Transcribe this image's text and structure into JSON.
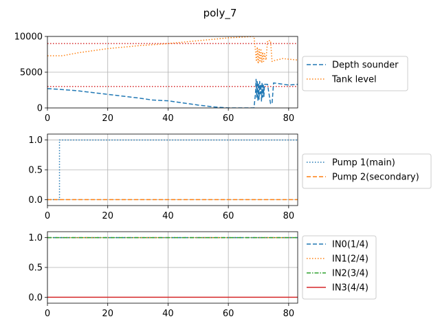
{
  "figure": {
    "title": "poly_7"
  },
  "chart_data": [
    {
      "type": "line",
      "xlim": [
        0,
        83
      ],
      "ylim": [
        0,
        10000
      ],
      "xticks": [
        0,
        20,
        40,
        60,
        80
      ],
      "yticks": [
        0,
        5000,
        10000
      ],
      "grid": true,
      "legend": "right",
      "series": [
        {
          "name": "Depth sounder",
          "color": "#1f77b4",
          "style": "dashed",
          "x": [
            0,
            4,
            10,
            20,
            30,
            35,
            40,
            45,
            50,
            55,
            60,
            62,
            68.5,
            69,
            69.2,
            69.4,
            69.6,
            69.8,
            70,
            70.2,
            70.4,
            70.6,
            70.8,
            71,
            71.2,
            71.4,
            71.6,
            71.8,
            72,
            73,
            74,
            74.5,
            75,
            80,
            83
          ],
          "y": [
            2700,
            2600,
            2400,
            1900,
            1400,
            1100,
            1000,
            700,
            400,
            150,
            0,
            0,
            0,
            2000,
            4000,
            1500,
            3800,
            1000,
            3500,
            1200,
            3700,
            2000,
            3300,
            900,
            3600,
            1500,
            3200,
            1600,
            3300,
            3300,
            600,
            600,
            3500,
            3200,
            3300
          ]
        },
        {
          "name": "Tank level",
          "color": "#ff7f0e",
          "style": "dotted",
          "x": [
            0,
            5,
            10,
            20,
            30,
            40,
            50,
            60,
            68.5,
            69,
            69.3,
            69.6,
            69.9,
            70.2,
            70.5,
            70.8,
            71.1,
            71.4,
            71.7,
            72,
            72.5,
            73,
            74,
            74.5,
            75,
            78,
            83
          ],
          "y": [
            7300,
            7300,
            7700,
            8300,
            8700,
            9000,
            9400,
            9800,
            10000,
            8000,
            6500,
            8500,
            6200,
            8200,
            6400,
            8300,
            6300,
            7800,
            6500,
            7600,
            6700,
            9400,
            9400,
            6500,
            6600,
            6900,
            6700
          ]
        }
      ],
      "hlines": [
        {
          "y": 9000,
          "color": "#d62728",
          "style": "dotted"
        },
        {
          "y": 3000,
          "color": "#d62728",
          "style": "dotted"
        }
      ]
    },
    {
      "type": "line",
      "xlim": [
        0,
        83
      ],
      "ylim": [
        -0.1,
        1.1
      ],
      "xticks": [
        0,
        20,
        40,
        60,
        80
      ],
      "yticks": [
        0.0,
        0.5,
        1.0
      ],
      "ytick_labels": [
        "0.0",
        "0.5",
        "1.0"
      ],
      "grid": true,
      "legend": "right",
      "series": [
        {
          "name": "Pump 1(main)",
          "color": "#1f77b4",
          "style": "dotted",
          "x": [
            0,
            4,
            4,
            83
          ],
          "y": [
            0,
            0,
            1,
            1
          ]
        },
        {
          "name": "Pump 2(secondary)",
          "color": "#ff7f0e",
          "style": "dashed",
          "x": [
            0,
            83
          ],
          "y": [
            0,
            0
          ]
        }
      ]
    },
    {
      "type": "line",
      "xlim": [
        0,
        83
      ],
      "ylim": [
        -0.1,
        1.1
      ],
      "xticks": [
        0,
        20,
        40,
        60,
        80
      ],
      "yticks": [
        0.0,
        0.5,
        1.0
      ],
      "ytick_labels": [
        "0.0",
        "0.5",
        "1.0"
      ],
      "grid": true,
      "legend": "right",
      "series": [
        {
          "name": "IN0(1/4)",
          "color": "#1f77b4",
          "style": "dashed",
          "x": [
            0,
            83
          ],
          "y": [
            1,
            1
          ]
        },
        {
          "name": "IN1(2/4)",
          "color": "#ff7f0e",
          "style": "dotted",
          "x": [
            0,
            83
          ],
          "y": [
            1,
            1
          ]
        },
        {
          "name": "IN2(3/4)",
          "color": "#2ca02c",
          "style": "dashdot",
          "x": [
            0,
            83
          ],
          "y": [
            1,
            1
          ]
        },
        {
          "name": "IN3(4/4)",
          "color": "#d62728",
          "style": "solid",
          "x": [
            0,
            83
          ],
          "y": [
            0,
            0
          ]
        }
      ]
    }
  ]
}
